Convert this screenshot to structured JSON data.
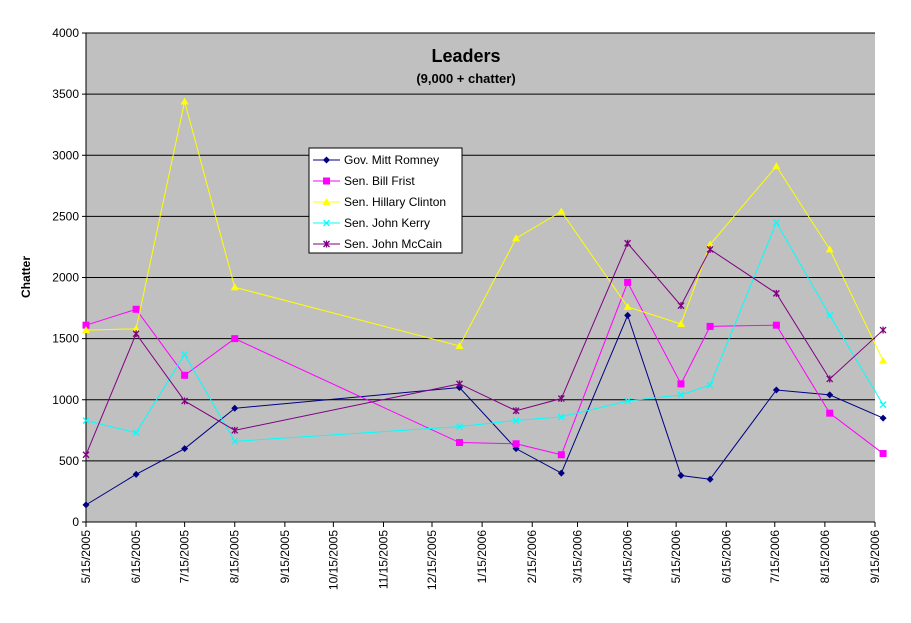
{
  "chart_data": {
    "type": "line",
    "title": "Leaders",
    "subtitle": "(9,000 +  chatter)",
    "xlabel": "",
    "ylabel": "Chatter",
    "ylim": [
      0,
      4000
    ],
    "y_ticks": [
      0,
      500,
      1000,
      1500,
      2000,
      2500,
      3000,
      3500,
      4000
    ],
    "x_ticks": [
      "5/15/2005",
      "6/15/2005",
      "7/15/2005",
      "8/15/2005",
      "9/15/2005",
      "10/15/2005",
      "11/15/2005",
      "12/15/2005",
      "1/15/2006",
      "2/15/2006",
      "3/15/2006",
      "4/15/2006",
      "5/15/2006",
      "6/15/2006",
      "7/15/2006",
      "8/15/2006",
      "9/15/2006"
    ],
    "x": [
      "2005-05-15",
      "2005-06-15",
      "2005-07-15",
      "2005-08-15",
      "2006-01-01",
      "2006-02-05",
      "2006-03-05",
      "2006-04-15",
      "2006-05-18",
      "2006-06-05",
      "2006-07-16",
      "2006-08-18",
      "2006-09-20"
    ],
    "grid": true,
    "legend_position": "top-left-center",
    "background": "#c0c0c0",
    "series": [
      {
        "name": "Gov. Mitt Romney",
        "color": "#000080",
        "marker": "diamond",
        "values": [
          140,
          390,
          600,
          930,
          1100,
          600,
          400,
          1690,
          380,
          350,
          1080,
          1040,
          850
        ]
      },
      {
        "name": "Sen. Bill Frist",
        "color": "#ff00ff",
        "marker": "square",
        "values": [
          1610,
          1740,
          1200,
          1500,
          650,
          640,
          550,
          1960,
          1130,
          1600,
          1610,
          890,
          560
        ]
      },
      {
        "name": "Sen. Hillary Clinton",
        "color": "#ffff00",
        "marker": "triangle",
        "values": [
          1570,
          1580,
          3440,
          1920,
          1440,
          2320,
          2540,
          1760,
          1620,
          2270,
          2910,
          2230,
          1320
        ]
      },
      {
        "name": "Sen. John Kerry",
        "color": "#00ffff",
        "marker": "x",
        "values": [
          830,
          730,
          1370,
          660,
          780,
          830,
          860,
          990,
          1040,
          1120,
          2450,
          1690,
          960
        ]
      },
      {
        "name": "Sen. John McCain",
        "color": "#800080",
        "marker": "star",
        "values": [
          550,
          1540,
          990,
          750,
          1130,
          910,
          1010,
          2280,
          1770,
          2230,
          1870,
          1170,
          1570
        ]
      }
    ]
  }
}
